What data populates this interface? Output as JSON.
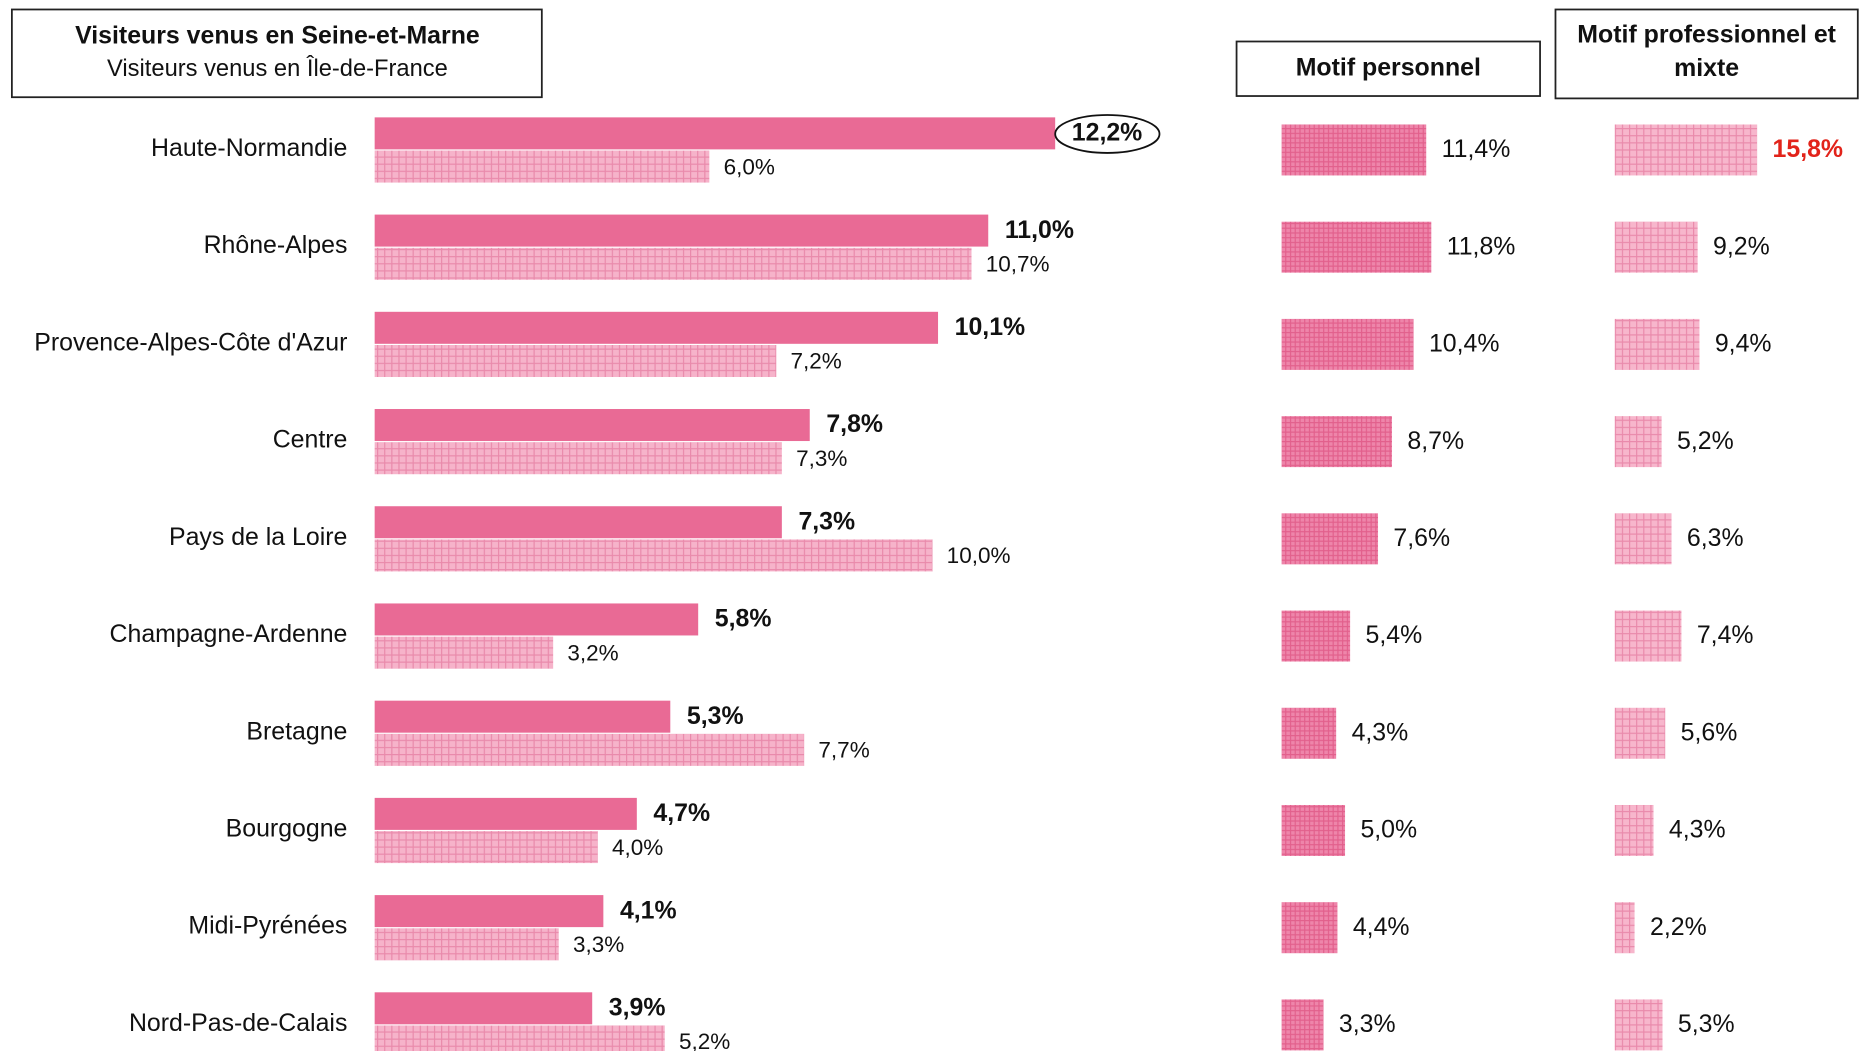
{
  "chart_data": [
    {
      "type": "bar",
      "orientation": "horizontal",
      "categories": [
        "Haute-Normandie",
        "Rhône-Alpes",
        "Provence-Alpes-Côte d'Azur",
        "Centre",
        "Pays de la Loire",
        "Champagne-Ardenne",
        "Bretagne",
        "Bourgogne",
        "Midi-Pyrénées",
        "Nord-Pas-de-Calais"
      ],
      "series": [
        {
          "name": "Visiteurs venus en Seine-et-Marne",
          "color": "#e96a95",
          "pattern": false,
          "values": [
            12.2,
            11.0,
            10.1,
            7.8,
            7.3,
            5.8,
            5.3,
            4.7,
            4.1,
            3.9
          ],
          "value_labels": [
            "12,2%",
            "11,0%",
            "10,1%",
            "7,8%",
            "7,3%",
            "5,8%",
            "5,3%",
            "4,7%",
            "4,1%",
            "3,9%"
          ]
        },
        {
          "name": "Visiteurs venus en Île-de-France",
          "color": "#f6b3ca",
          "pattern": true,
          "values": [
            6.0,
            10.7,
            7.2,
            7.3,
            10.0,
            3.2,
            7.7,
            4.0,
            3.3,
            5.2
          ],
          "value_labels": [
            "6,0%",
            "10,7%",
            "7,2%",
            "7,3%",
            "10,0%",
            "3,2%",
            "7,7%",
            "4,0%",
            "3,3%",
            "5,2%"
          ]
        }
      ],
      "circled_index": 0
    },
    {
      "type": "bar",
      "orientation": "horizontal",
      "title": "Motif personnel",
      "color": "#ee85aa",
      "pattern": true,
      "values": [
        11.4,
        11.8,
        10.4,
        8.7,
        7.6,
        5.4,
        4.3,
        5.0,
        4.4,
        3.3
      ],
      "value_labels": [
        "11,4%",
        "11,8%",
        "10,4%",
        "8,7%",
        "7,6%",
        "5,4%",
        "4,3%",
        "5,0%",
        "4,4%",
        "3,3%"
      ]
    },
    {
      "type": "bar",
      "orientation": "horizontal",
      "title": "Motif professionnel et mixte",
      "color": "#f7b6cc",
      "pattern": true,
      "values": [
        15.8,
        9.2,
        9.4,
        5.2,
        6.3,
        7.4,
        5.6,
        4.3,
        2.2,
        5.3
      ],
      "value_labels": [
        "15,8%",
        "9,2%",
        "9,4%",
        "5,2%",
        "6,3%",
        "7,4%",
        "5,6%",
        "4,3%",
        "2,2%",
        "5,3%"
      ],
      "highlight_index": 0,
      "highlight_color": "#e2231a"
    }
  ]
}
